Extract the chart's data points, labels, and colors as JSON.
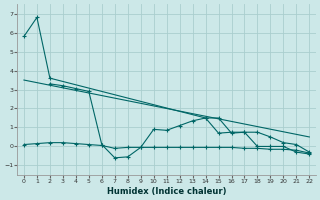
{
  "xlabel": "Humidex (Indice chaleur)",
  "bg_color": "#cce8e8",
  "grid_color": "#aacece",
  "line_color": "#006666",
  "xlim": [
    -0.5,
    22.5
  ],
  "ylim": [
    -1.5,
    7.5
  ],
  "xticks": [
    0,
    1,
    2,
    3,
    4,
    5,
    6,
    7,
    8,
    9,
    10,
    11,
    12,
    13,
    14,
    15,
    16,
    17,
    18,
    19,
    20,
    21,
    22
  ],
  "yticks": [
    -1,
    0,
    1,
    2,
    3,
    4,
    5,
    6,
    7
  ],
  "series1_x": [
    0,
    1,
    2,
    14,
    15,
    16,
    17,
    18,
    19,
    20,
    21,
    22
  ],
  "series1_y": [
    5.8,
    6.8,
    3.6,
    1.5,
    1.5,
    0.7,
    0.75,
    0.75,
    0.5,
    0.2,
    0.1,
    -0.3
  ],
  "series2_x": [
    0,
    22
  ],
  "series2_y": [
    3.5,
    0.5
  ],
  "series3_x": [
    2,
    3,
    4,
    5,
    6,
    7,
    8,
    9,
    10,
    11,
    12,
    13,
    14,
    15,
    16,
    17,
    18,
    19,
    20,
    21,
    22
  ],
  "series3_y": [
    3.3,
    3.2,
    3.05,
    2.9,
    0.1,
    -0.6,
    -0.55,
    -0.05,
    0.9,
    0.85,
    1.1,
    1.35,
    1.5,
    0.7,
    0.75,
    0.75,
    0.0,
    0.0,
    0.0,
    -0.3,
    -0.4
  ],
  "series4_x": [
    0,
    1,
    2,
    3,
    4,
    5,
    6,
    7,
    8,
    9,
    10,
    11,
    12,
    13,
    14,
    15,
    16,
    17,
    18,
    19,
    20,
    21,
    22
  ],
  "series4_y": [
    0.1,
    0.15,
    0.2,
    0.2,
    0.15,
    0.1,
    0.05,
    -0.1,
    -0.05,
    -0.05,
    -0.05,
    -0.05,
    -0.05,
    -0.05,
    -0.05,
    -0.05,
    -0.05,
    -0.1,
    -0.1,
    -0.15,
    -0.15,
    -0.2,
    -0.35
  ]
}
